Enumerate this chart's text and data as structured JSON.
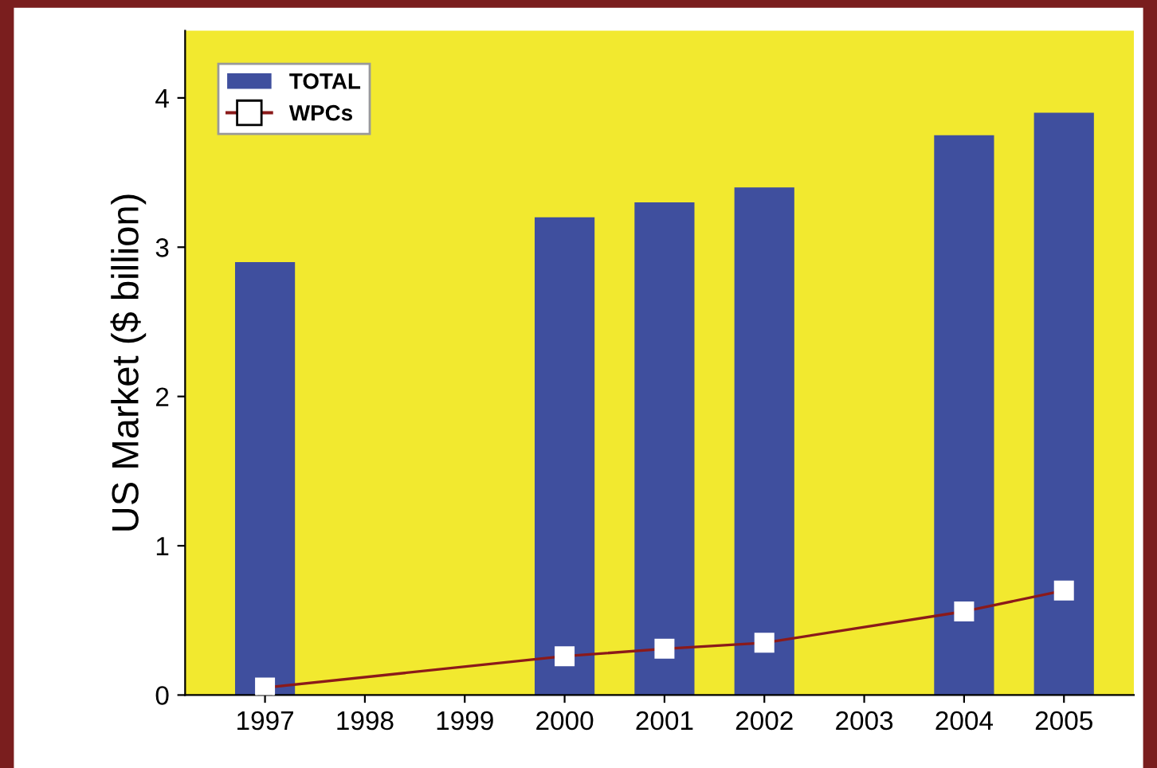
{
  "chart_data": {
    "type": "bar",
    "ylabel": "US Market ($ billion)",
    "categories": [
      "1997",
      "1998",
      "1999",
      "2000",
      "2001",
      "2002",
      "2003",
      "2004",
      "2005"
    ],
    "series": [
      {
        "name": "TOTAL",
        "color": "#3f4f9e",
        "values": [
          2.9,
          null,
          null,
          3.2,
          3.3,
          3.4,
          null,
          3.75,
          3.9
        ]
      },
      {
        "name": "WPCs",
        "type": "line",
        "color": "#8b1a1a",
        "marker": "square",
        "values": [
          0.05,
          null,
          null,
          0.26,
          0.31,
          0.35,
          null,
          0.56,
          0.7
        ]
      }
    ],
    "ylim": [
      0,
      4.45
    ],
    "yticks": [
      0,
      1,
      2,
      3,
      4
    ],
    "legend": "top left",
    "grid": false
  }
}
